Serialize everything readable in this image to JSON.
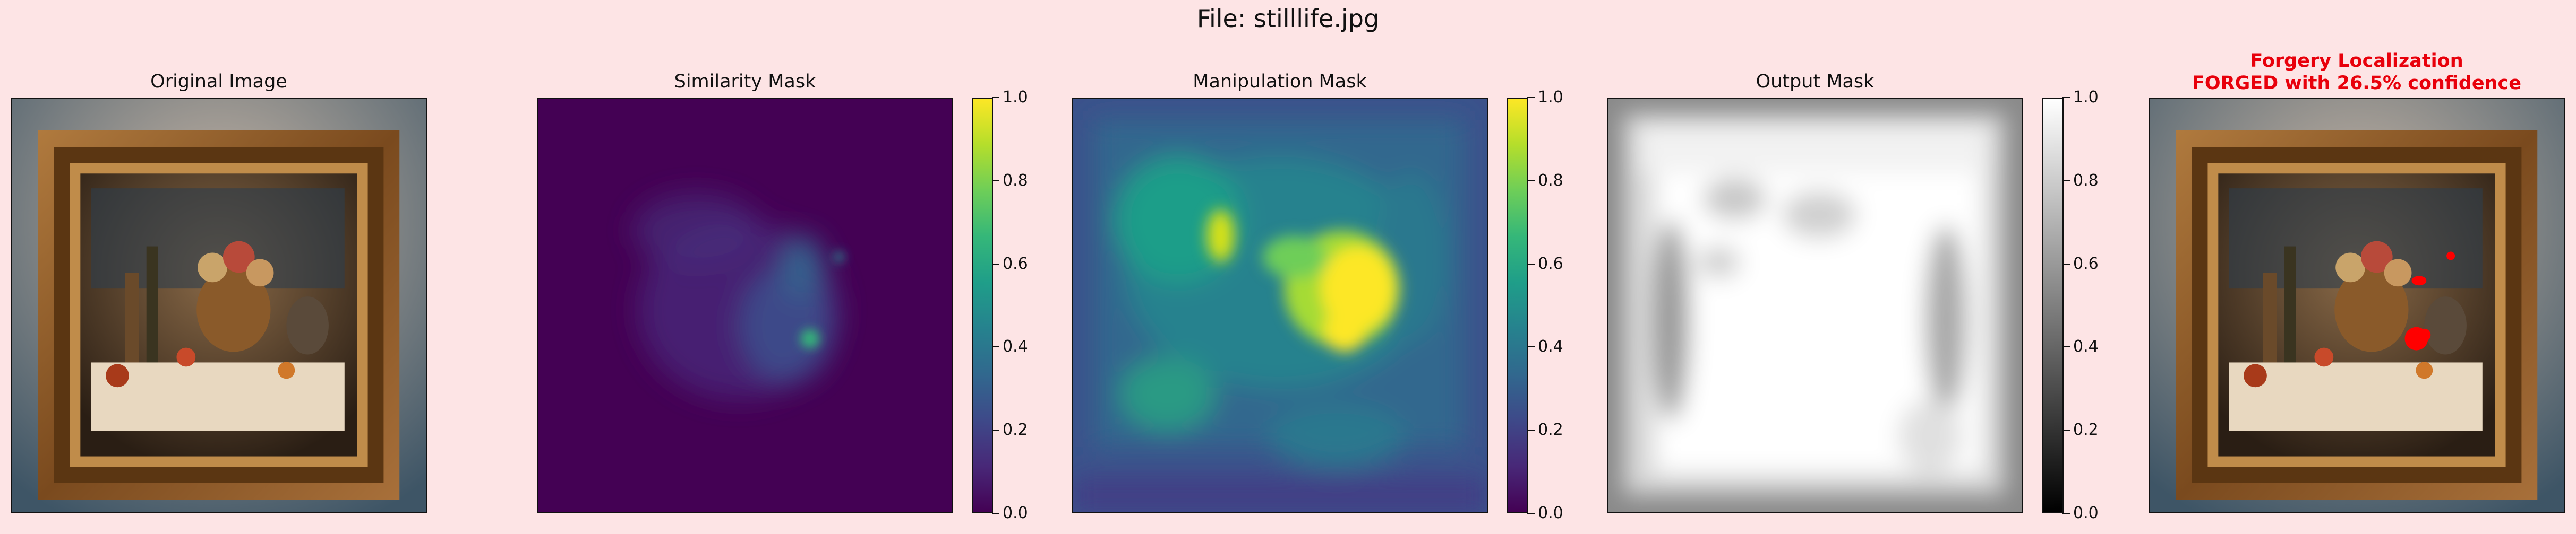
{
  "figure": {
    "title": "File: stilllife.jpg"
  },
  "panels": [
    {
      "id": "original",
      "title": "Original Image"
    },
    {
      "id": "similarity",
      "title": "Similarity Mask"
    },
    {
      "id": "manipulation",
      "title": "Manipulation Mask"
    },
    {
      "id": "output",
      "title": "Output Mask"
    },
    {
      "id": "localization",
      "title_line1": "Forgery Localization",
      "title_line2": "FORGED with 26.5% confidence"
    }
  ],
  "colorbars": {
    "similarity": {
      "colormap": "viridis",
      "range": [
        0.0,
        1.0
      ],
      "ticks": [
        "0.0",
        "0.2",
        "0.4",
        "0.6",
        "0.8",
        "1.0"
      ]
    },
    "manipulation": {
      "colormap": "viridis",
      "range": [
        0.0,
        1.0
      ],
      "ticks": [
        "0.0",
        "0.2",
        "0.4",
        "0.6",
        "0.8",
        "1.0"
      ]
    },
    "output": {
      "colormap": "gray",
      "range": [
        0.0,
        1.0
      ],
      "ticks": [
        "0.0",
        "0.2",
        "0.4",
        "0.6",
        "0.8",
        "1.0"
      ]
    }
  },
  "colors": {
    "background": "#fde4e5",
    "title_red": "#e8000b",
    "forgery_marker": "#ff0000"
  }
}
